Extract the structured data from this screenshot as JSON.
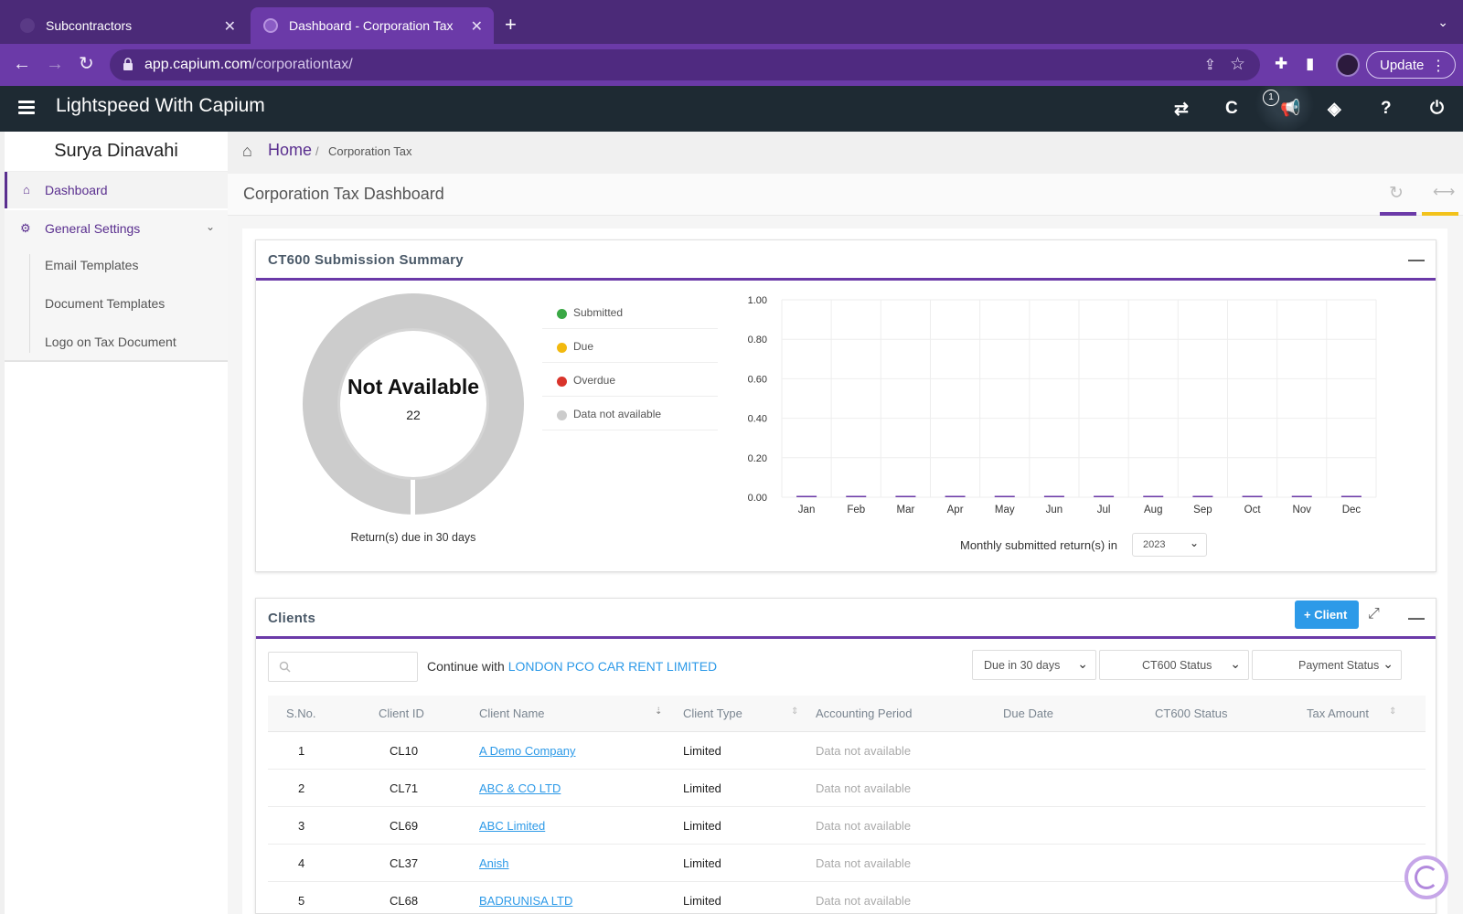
{
  "browser": {
    "tabs": [
      {
        "title": "Subcontractors",
        "active": false
      },
      {
        "title": "Dashboard - Corporation Tax",
        "active": true
      }
    ],
    "url_domain": "app.capium.com",
    "url_path": "/corporationtax/",
    "update_label": "Update"
  },
  "app": {
    "title": "Lightspeed With Capium",
    "notification_count": "1",
    "header_icons": [
      "switch-icon",
      "capium-icon",
      "announcement-icon",
      "ticket-icon",
      "help-icon",
      "power-icon"
    ]
  },
  "sidebar": {
    "user_name": "Surya Dinavahi",
    "items": [
      {
        "label": "Dashboard",
        "icon": "home-icon",
        "active": true
      },
      {
        "label": "General Settings",
        "icon": "settings-icon",
        "active": false
      }
    ],
    "sub_items": [
      "Email Templates",
      "Document Templates",
      "Logo on Tax Document"
    ]
  },
  "breadcrumb": {
    "home": "Home",
    "separator": "/",
    "current": "Corporation Tax"
  },
  "page": {
    "title": "Corporation Tax Dashboard"
  },
  "summary": {
    "title": "CT600 Submission Summary",
    "donut_label": "Not Available",
    "donut_count": "22",
    "donut_caption": "Return(s) due in 30 days",
    "legend": [
      {
        "label": "Submitted",
        "color": "#3aa845"
      },
      {
        "label": "Due",
        "color": "#f2b90f"
      },
      {
        "label": "Overdue",
        "color": "#d9342b"
      },
      {
        "label": "Data not available",
        "color": "#cccccc"
      }
    ],
    "chart_footer": "Monthly submitted return(s) in",
    "year": "2023"
  },
  "chart_data": {
    "type": "bar",
    "categories": [
      "Jan",
      "Feb",
      "Mar",
      "Apr",
      "May",
      "Jun",
      "Jul",
      "Aug",
      "Sep",
      "Oct",
      "Nov",
      "Dec"
    ],
    "values": [
      0,
      0,
      0,
      0,
      0,
      0,
      0,
      0,
      0,
      0,
      0,
      0
    ],
    "y_ticks": [
      "1.00",
      "0.80",
      "0.60",
      "0.40",
      "0.20",
      "0.00"
    ],
    "ylim": [
      0,
      1
    ],
    "grid": true,
    "bar_color": "#6b3aa8"
  },
  "clients": {
    "title": "Clients",
    "add_label": "Client",
    "continue_text": "Continue with",
    "continue_client": "LONDON PCO CAR RENT LIMITED",
    "filters": [
      "Due in 30 days",
      "CT600 Status",
      "Payment Status"
    ],
    "columns": [
      "S.No.",
      "Client ID",
      "Client Name",
      "Client Type",
      "Accounting Period",
      "Due Date",
      "CT600 Status",
      "Tax Amount"
    ],
    "rows": [
      {
        "sno": "1",
        "id": "CL10",
        "name": "A Demo Company",
        "type": "Limited",
        "period": "Data not available"
      },
      {
        "sno": "2",
        "id": "CL71",
        "name": "ABC & CO LTD",
        "type": "Limited",
        "period": "Data not available"
      },
      {
        "sno": "3",
        "id": "CL69",
        "name": "ABC Limited",
        "type": "Limited",
        "period": "Data not available"
      },
      {
        "sno": "4",
        "id": "CL37",
        "name": "Anish",
        "type": "Limited",
        "period": "Data not available"
      },
      {
        "sno": "5",
        "id": "CL68",
        "name": "BADRUNISA LTD",
        "type": "Limited",
        "period": "Data not available"
      }
    ]
  },
  "colors": {
    "brand": "#6b3aa8",
    "header": "#1e2a33",
    "link": "#2d9ae8",
    "accent_yellow": "#f2c21b"
  }
}
